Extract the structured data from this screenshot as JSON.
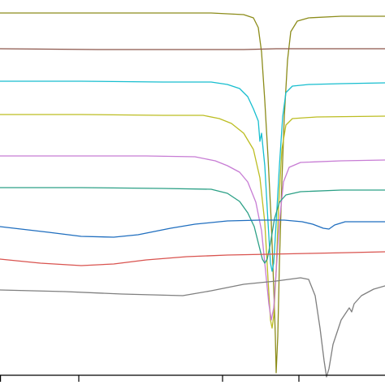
{
  "chart_data": {
    "type": "line",
    "title": "",
    "xlabel": "",
    "ylabel": "",
    "xlim": [
      0,
      474
    ],
    "ylim": [
      0,
      474
    ],
    "grid": false,
    "legend": "none",
    "x_ticks": [
      0,
      97,
      274,
      368
    ],
    "series": [
      {
        "color": "#8c8c1a",
        "points": [
          [
            0,
            458
          ],
          [
            150,
            458
          ],
          [
            260,
            458
          ],
          [
            300,
            456
          ],
          [
            312,
            452
          ],
          [
            318,
            440
          ],
          [
            322,
            410
          ],
          [
            326,
            350
          ],
          [
            330,
            280
          ],
          [
            334,
            200
          ],
          [
            337,
            120
          ],
          [
            339,
            60
          ],
          [
            340,
            15
          ],
          [
            342,
            60
          ],
          [
            344,
            150
          ],
          [
            347,
            250
          ],
          [
            350,
            330
          ],
          [
            354,
            400
          ],
          [
            358,
            435
          ],
          [
            366,
            448
          ],
          [
            380,
            452
          ],
          [
            420,
            454
          ],
          [
            474,
            454
          ]
        ]
      },
      {
        "color": "#8c564b",
        "points": [
          [
            0,
            414
          ],
          [
            120,
            413
          ],
          [
            200,
            413
          ],
          [
            300,
            413
          ],
          [
            340,
            414
          ],
          [
            400,
            414
          ],
          [
            474,
            414
          ]
        ]
      },
      {
        "color": "#17becf",
        "points": [
          [
            0,
            374
          ],
          [
            100,
            374
          ],
          [
            200,
            373
          ],
          [
            260,
            373
          ],
          [
            280,
            370
          ],
          [
            295,
            365
          ],
          [
            305,
            355
          ],
          [
            312,
            340
          ],
          [
            318,
            325
          ],
          [
            320,
            300
          ],
          [
            322,
            310
          ],
          [
            326,
            270
          ],
          [
            330,
            200
          ],
          [
            333,
            150
          ],
          [
            335,
            140
          ],
          [
            337,
            150
          ],
          [
            340,
            200
          ],
          [
            344,
            270
          ],
          [
            348,
            330
          ],
          [
            352,
            360
          ],
          [
            360,
            368
          ],
          [
            380,
            370
          ],
          [
            420,
            371
          ],
          [
            474,
            372
          ]
        ]
      },
      {
        "color": "#bcbd22",
        "points": [
          [
            0,
            333
          ],
          [
            100,
            333
          ],
          [
            200,
            332
          ],
          [
            250,
            332
          ],
          [
            270,
            328
          ],
          [
            285,
            322
          ],
          [
            300,
            310
          ],
          [
            312,
            290
          ],
          [
            320,
            255
          ],
          [
            326,
            200
          ],
          [
            330,
            130
          ],
          [
            333,
            80
          ],
          [
            335,
            70
          ],
          [
            337,
            85
          ],
          [
            340,
            140
          ],
          [
            343,
            220
          ],
          [
            347,
            290
          ],
          [
            352,
            320
          ],
          [
            360,
            328
          ],
          [
            390,
            330
          ],
          [
            474,
            331
          ]
        ]
      },
      {
        "color": "#c77cd4",
        "points": [
          [
            0,
            282
          ],
          [
            100,
            282
          ],
          [
            180,
            282
          ],
          [
            240,
            281
          ],
          [
            265,
            276
          ],
          [
            280,
            270
          ],
          [
            295,
            262
          ],
          [
            305,
            250
          ],
          [
            315,
            225
          ],
          [
            322,
            190
          ],
          [
            327,
            140
          ],
          [
            331,
            100
          ],
          [
            334,
            80
          ],
          [
            337,
            95
          ],
          [
            340,
            140
          ],
          [
            344,
            200
          ],
          [
            349,
            250
          ],
          [
            356,
            268
          ],
          [
            370,
            274
          ],
          [
            420,
            276
          ],
          [
            474,
            277
          ]
        ]
      },
      {
        "color": "#2ca086",
        "points": [
          [
            0,
            243
          ],
          [
            100,
            243
          ],
          [
            200,
            242
          ],
          [
            260,
            241
          ],
          [
            280,
            236
          ],
          [
            295,
            226
          ],
          [
            305,
            212
          ],
          [
            313,
            195
          ],
          [
            318,
            175
          ],
          [
            323,
            155
          ],
          [
            326,
            150
          ],
          [
            329,
            155
          ],
          [
            333,
            175
          ],
          [
            338,
            205
          ],
          [
            344,
            225
          ],
          [
            352,
            234
          ],
          [
            370,
            238
          ],
          [
            420,
            240
          ],
          [
            474,
            240
          ]
        ]
      },
      {
        "color": "#1f6ebf",
        "points": [
          [
            0,
            195
          ],
          [
            60,
            188
          ],
          [
            100,
            183
          ],
          [
            140,
            182
          ],
          [
            170,
            185
          ],
          [
            210,
            193
          ],
          [
            240,
            198
          ],
          [
            280,
            202
          ],
          [
            320,
            203
          ],
          [
            350,
            203
          ],
          [
            372,
            201
          ],
          [
            385,
            198
          ],
          [
            398,
            193
          ],
          [
            405,
            192
          ],
          [
            412,
            197
          ],
          [
            425,
            201
          ],
          [
            474,
            201
          ]
        ]
      },
      {
        "color": "#d9534f",
        "points": [
          [
            0,
            155
          ],
          [
            50,
            150
          ],
          [
            100,
            147
          ],
          [
            140,
            149
          ],
          [
            180,
            154
          ],
          [
            230,
            158
          ],
          [
            280,
            160
          ],
          [
            330,
            161
          ],
          [
            380,
            162
          ],
          [
            430,
            163
          ],
          [
            474,
            164
          ]
        ]
      },
      {
        "color": "#7f7f7f",
        "points": [
          [
            0,
            117
          ],
          [
            80,
            115
          ],
          [
            150,
            112
          ],
          [
            225,
            110
          ],
          [
            260,
            116
          ],
          [
            300,
            124
          ],
          [
            340,
            128
          ],
          [
            370,
            132
          ],
          [
            380,
            130
          ],
          [
            388,
            110
          ],
          [
            394,
            70
          ],
          [
            399,
            30
          ],
          [
            402,
            10
          ],
          [
            405,
            20
          ],
          [
            410,
            50
          ],
          [
            420,
            80
          ],
          [
            430,
            95
          ],
          [
            433,
            90
          ],
          [
            436,
            100
          ],
          [
            445,
            110
          ],
          [
            460,
            118
          ],
          [
            474,
            122
          ]
        ]
      }
    ]
  }
}
